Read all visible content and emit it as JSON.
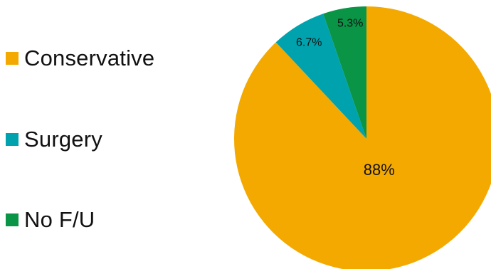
{
  "chart_data": {
    "type": "pie",
    "title": "",
    "categories": [
      "Conservative",
      "Surgery",
      "No F/U"
    ],
    "values": [
      88,
      6.7,
      5.3
    ],
    "value_labels": [
      "88%",
      "6.7%",
      "5.3%"
    ],
    "colors": [
      "#F4A900",
      "#00A3AD",
      "#0A9446"
    ],
    "start_angle_deg": 0,
    "direction": "clockwise",
    "legend": {
      "placement": "left",
      "items": [
        "Conservative",
        "Surgery",
        "No F/U"
      ]
    }
  }
}
